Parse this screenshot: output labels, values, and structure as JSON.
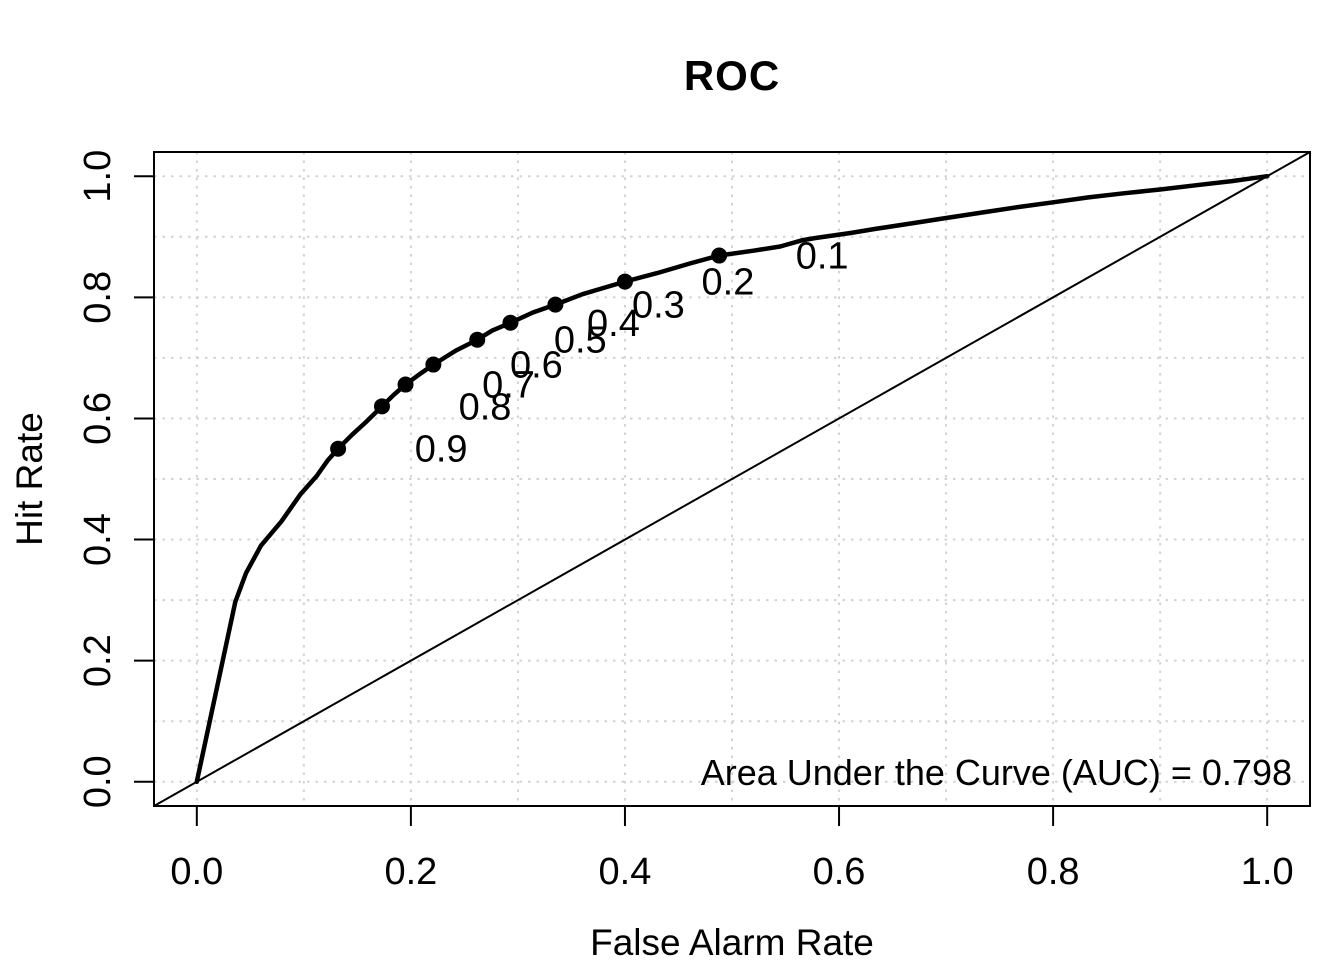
{
  "title": "ROC",
  "axes": {
    "xlabel": "False Alarm Rate",
    "ylabel": "Hit Rate",
    "x_tick_labels": [
      "0.0",
      "0.2",
      "0.4",
      "0.6",
      "0.8",
      "1.0"
    ],
    "y_tick_labels": [
      "0.0",
      "0.2",
      "0.4",
      "0.6",
      "0.8",
      "1.0"
    ],
    "x_tick_values": [
      0,
      0.2,
      0.4,
      0.6,
      0.8,
      1.0
    ],
    "y_tick_values": [
      0,
      0.2,
      0.4,
      0.6,
      0.8,
      1.0
    ]
  },
  "annotation": {
    "auc_text": "Area Under the Curve (AUC) = 0.798"
  },
  "colors": {
    "foreground": "#000000",
    "grid": "#d3d3d3",
    "background": "#ffffff"
  },
  "chart_data": {
    "type": "line",
    "title": "ROC",
    "xlabel": "False Alarm Rate",
    "ylabel": "Hit Rate",
    "xlim": [
      0,
      1
    ],
    "ylim": [
      0,
      1
    ],
    "grid": {
      "on": true,
      "step": 0.1,
      "style": "dotted",
      "color": "#d3d3d3"
    },
    "auc": 0.798,
    "annotation": "Area Under the Curve (AUC) = 0.798",
    "series": [
      {
        "name": "ROC curve",
        "style": "thick solid black line",
        "x": [
          0.0,
          0.036,
          0.046,
          0.06,
          0.079,
          0.097,
          0.112,
          0.122,
          0.132,
          0.145,
          0.158,
          0.173,
          0.184,
          0.195,
          0.209,
          0.221,
          0.242,
          0.262,
          0.276,
          0.293,
          0.314,
          0.335,
          0.36,
          0.381,
          0.4,
          0.43,
          0.461,
          0.488,
          0.52,
          0.545,
          0.565,
          0.578,
          0.61,
          0.634,
          0.667,
          0.7,
          0.733,
          0.767,
          0.8,
          0.833,
          0.867,
          0.9,
          0.933,
          0.967,
          1.0
        ],
        "y": [
          0.0,
          0.297,
          0.345,
          0.39,
          0.43,
          0.475,
          0.505,
          0.53,
          0.55,
          0.573,
          0.594,
          0.62,
          0.639,
          0.656,
          0.674,
          0.689,
          0.712,
          0.73,
          0.745,
          0.758,
          0.775,
          0.788,
          0.805,
          0.816,
          0.826,
          0.84,
          0.856,
          0.869,
          0.877,
          0.884,
          0.894,
          0.898,
          0.906,
          0.913,
          0.922,
          0.931,
          0.94,
          0.949,
          0.957,
          0.965,
          0.972,
          0.978,
          0.985,
          0.992,
          1.0
        ]
      },
      {
        "name": "chance diagonal reference line",
        "style": "thin solid black line",
        "x": [
          0,
          1
        ],
        "y": [
          0,
          1
        ]
      }
    ],
    "threshold_points": [
      {
        "label": "0.1",
        "x": 0.488,
        "y": 0.869
      },
      {
        "label": "0.2",
        "x": 0.4,
        "y": 0.826
      },
      {
        "label": "0.3",
        "x": 0.335,
        "y": 0.788
      },
      {
        "label": "0.4",
        "x": 0.293,
        "y": 0.758
      },
      {
        "label": "0.5",
        "x": 0.262,
        "y": 0.73
      },
      {
        "label": "0.6",
        "x": 0.221,
        "y": 0.689
      },
      {
        "label": "0.7",
        "x": 0.195,
        "y": 0.656
      },
      {
        "label": "0.8",
        "x": 0.173,
        "y": 0.62
      },
      {
        "label": "0.9",
        "x": 0.132,
        "y": 0.55
      }
    ]
  }
}
